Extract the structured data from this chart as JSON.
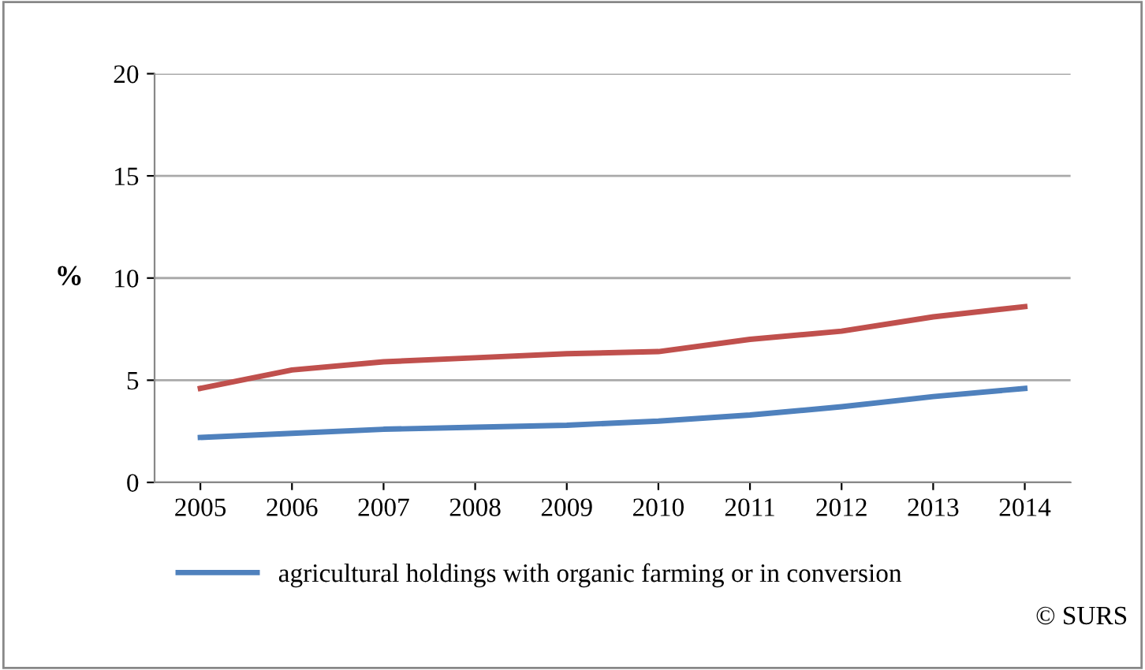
{
  "chart_data": {
    "type": "line",
    "ylabel": "%",
    "categories": [
      "2005",
      "2006",
      "2007",
      "2008",
      "2009",
      "2010",
      "2011",
      "2012",
      "2013",
      "2014"
    ],
    "series": [
      {
        "color": "#c0504d",
        "values": [
          4.6,
          5.5,
          5.9,
          6.1,
          6.3,
          6.4,
          7.0,
          7.4,
          8.1,
          8.6
        ]
      },
      {
        "name": "agricultural holdings with organic farming or in conversion",
        "color": "#4f81bd",
        "values": [
          2.2,
          2.4,
          2.6,
          2.7,
          2.8,
          3.0,
          3.3,
          3.7,
          4.2,
          4.6
        ]
      }
    ],
    "ylim": [
      0,
      20
    ],
    "yticks": [
      0,
      5,
      10,
      15,
      20
    ],
    "grid": "y",
    "legend": "bottom",
    "marker": "none",
    "line_style": "solid",
    "annotations": [
      "© SURS"
    ]
  }
}
